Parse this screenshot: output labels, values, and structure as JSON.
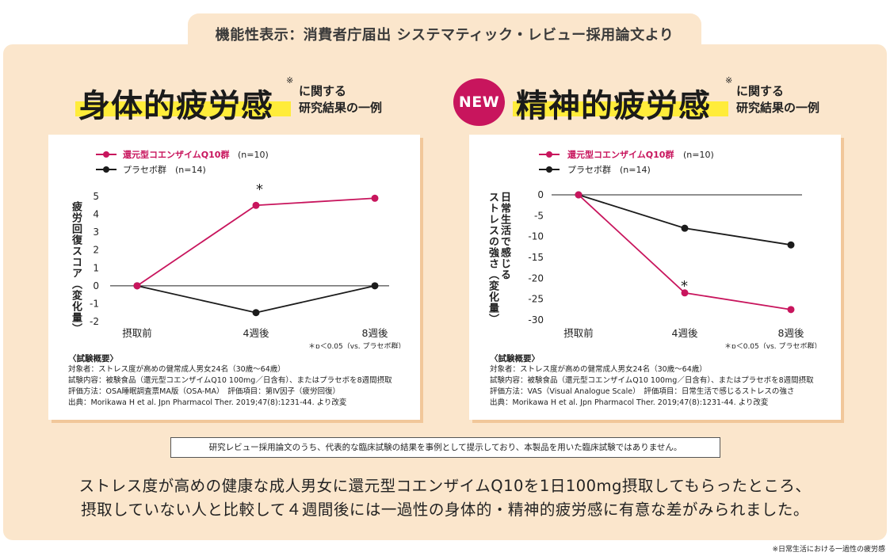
{
  "header": {
    "text": "機能性表示：消費者庁届出 システマティック・レビュー採用論文より"
  },
  "left_section": {
    "title": "身体的疲労感",
    "mark": "※",
    "sub_line1": "に関する",
    "sub_line2": "研究結果の一例"
  },
  "right_section": {
    "badge": "NEW",
    "title": "精神的疲労感",
    "mark": "※",
    "sub_line1": "に関する",
    "sub_line2": "研究結果の一例"
  },
  "colors": {
    "accent": "#c8155d",
    "placebo": "#1b1b1b",
    "highlight": "#ffec3a",
    "panel": "#fbe6cc"
  },
  "chart_data": [
    {
      "type": "line",
      "title": "身体的疲労感",
      "ylabel": "疲労回復スコア（変化量）",
      "categories": [
        "摂取前",
        "4週後",
        "8週後"
      ],
      "ylim": [
        -2,
        5
      ],
      "yticks": [
        "5",
        "4",
        "3",
        "2",
        "1",
        "0",
        "-1",
        "-2"
      ],
      "series": [
        {
          "name": "還元型コエンザイムQ10群",
          "n": "(n=10)",
          "color": "#c8155d",
          "values": [
            0,
            4.5,
            4.9
          ]
        },
        {
          "name": "プラセボ群",
          "n": "(n=14)",
          "color": "#1b1b1b",
          "values": [
            0,
            -1.5,
            0
          ]
        }
      ],
      "significance_mark": "*",
      "significance_note": "＊p＜0.05（vs. プラセボ群）",
      "trial_title": "〈試験概要〉",
      "trial_lines": [
        "対象者：ストレス度が高めの健常成人男女24名（30歳〜64歳）",
        "試験内容：被験食品（還元型コエンザイムQ10 100mg／日含有）、またはプラセボを8週間摂取",
        "評価方法：OSA睡眠調査票MA版（OSA-MA）　評価項目：第Ⅳ因子（疲労回復）",
        "出典：Morikawa H et al. Jpn Pharmacol Ther. 2019;47(8):1231-44. より改変"
      ]
    },
    {
      "type": "line",
      "title": "精神的疲労感",
      "ylabel_line1": "日常生活で感じる",
      "ylabel_line2": "ストレスの強さ（変化量）",
      "categories": [
        "摂取前",
        "4週後",
        "8週後"
      ],
      "ylim": [
        -30,
        0
      ],
      "yticks": [
        "0",
        "-5",
        "-10",
        "-15",
        "-20",
        "-25",
        "-30"
      ],
      "series": [
        {
          "name": "還元型コエンザイムQ10群",
          "n": "(n=10)",
          "color": "#c8155d",
          "values": [
            0,
            -23.5,
            -27.5
          ]
        },
        {
          "name": "プラセボ群",
          "n": "(n=14)",
          "color": "#1b1b1b",
          "values": [
            0,
            -8,
            -12
          ]
        }
      ],
      "significance_mark": "*",
      "significance_note": "＊p＜0.05（vs. プラセボ群）",
      "trial_title": "〈試験概要〉",
      "trial_lines": [
        "対象者：ストレス度が高めの健常成人男女24名（30歳〜64歳）",
        "試験内容：被験食品（還元型コエンザイムQ10 100mg／日含有）、またはプラセボを8週間摂取",
        "評価方法：VAS（Visual Analogue Scale）　評価項目：日常生活で感じるストレスの強さ",
        "出典：Morikawa H et al. Jpn Pharmacol Ther. 2019;47(8):1231-44. より改変"
      ]
    }
  ],
  "disclaimer": "研究レビュー採用論文のうち、代表的な臨床試験の結果を事例として提示しており、本製品を用いた臨床試験ではありません。",
  "summary_line1": "ストレス度が高めの健康な成人男女に還元型コエンザイムQ10を1日100mg摂取してもらったところ、",
  "summary_line2": "摂取していない人と比較して４週間後には一過性の身体的・精神的疲労感に有意な差がみられました。",
  "footnote": "※日常生活における一過性の疲労感"
}
